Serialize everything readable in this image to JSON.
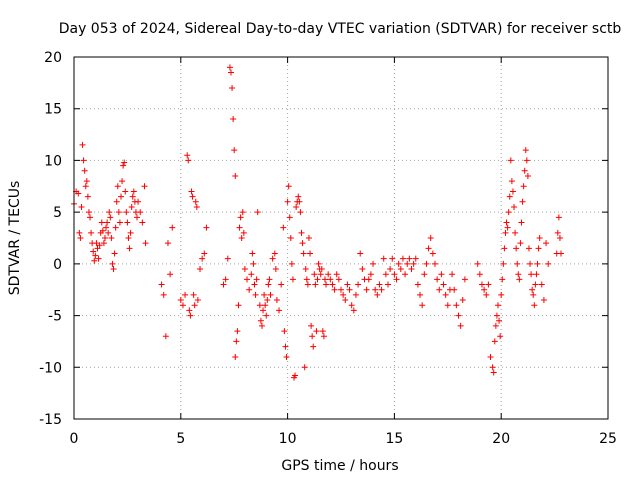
{
  "chart_data": {
    "type": "scatter",
    "title": "Day 053 of 2024, Sidereal Day-to-day VTEC variation (SDTVAR) for receiver sctb",
    "xlabel": "GPS time / hours",
    "ylabel": "SDTVAR / TECUs",
    "xlim": [
      0,
      25
    ],
    "ylim": [
      -15,
      20
    ],
    "xticks": [
      "0",
      "5",
      "10",
      "15",
      "20",
      "25"
    ],
    "yticks": [
      "-15",
      "-10",
      "-5",
      "0",
      "5",
      "10",
      "15",
      "20"
    ],
    "grid": true,
    "marker": "+",
    "color": "#ff0000",
    "series": [
      {
        "name": "SDTVAR",
        "points": [
          [
            0.0,
            5.8
          ],
          [
            0.1,
            7.0
          ],
          [
            0.2,
            6.8
          ],
          [
            0.25,
            3.0
          ],
          [
            0.3,
            2.5
          ],
          [
            0.35,
            5.5
          ],
          [
            0.4,
            11.5
          ],
          [
            0.45,
            10.0
          ],
          [
            0.5,
            9.0
          ],
          [
            0.55,
            7.5
          ],
          [
            0.6,
            8.0
          ],
          [
            0.65,
            6.5
          ],
          [
            0.7,
            5.0
          ],
          [
            0.75,
            4.5
          ],
          [
            0.8,
            3.0
          ],
          [
            0.85,
            2.0
          ],
          [
            0.9,
            1.2
          ],
          [
            0.95,
            0.3
          ],
          [
            1.0,
            0.8
          ],
          [
            1.05,
            2.0
          ],
          [
            1.1,
            1.5
          ],
          [
            1.15,
            0.5
          ],
          [
            1.2,
            1.8
          ],
          [
            1.25,
            3.0
          ],
          [
            1.3,
            4.0
          ],
          [
            1.35,
            3.2
          ],
          [
            1.4,
            2.0
          ],
          [
            1.45,
            2.5
          ],
          [
            1.5,
            3.5
          ],
          [
            1.55,
            4.0
          ],
          [
            1.6,
            3.0
          ],
          [
            1.65,
            5.0
          ],
          [
            1.7,
            4.5
          ],
          [
            1.75,
            2.5
          ],
          [
            1.8,
            0.0
          ],
          [
            1.85,
            -0.5
          ],
          [
            1.9,
            1.0
          ],
          [
            1.95,
            3.5
          ],
          [
            2.0,
            6.0
          ],
          [
            2.05,
            7.5
          ],
          [
            2.1,
            5.0
          ],
          [
            2.15,
            4.0
          ],
          [
            2.2,
            6.5
          ],
          [
            2.25,
            8.0
          ],
          [
            2.3,
            9.5
          ],
          [
            2.35,
            9.8
          ],
          [
            2.4,
            7.0
          ],
          [
            2.45,
            5.0
          ],
          [
            2.5,
            4.0
          ],
          [
            2.55,
            2.5
          ],
          [
            2.6,
            1.5
          ],
          [
            2.65,
            3.0
          ],
          [
            2.7,
            5.5
          ],
          [
            2.75,
            6.5
          ],
          [
            2.8,
            7.0
          ],
          [
            2.85,
            6.0
          ],
          [
            2.9,
            5.0
          ],
          [
            2.95,
            4.5
          ],
          [
            3.0,
            6.0
          ],
          [
            3.1,
            5.0
          ],
          [
            3.2,
            4.0
          ],
          [
            3.3,
            7.5
          ],
          [
            3.35,
            2.0
          ],
          [
            4.1,
            -2.0
          ],
          [
            4.2,
            -3.0
          ],
          [
            4.3,
            -7.0
          ],
          [
            4.4,
            2.0
          ],
          [
            4.5,
            -1.0
          ],
          [
            4.6,
            3.5
          ],
          [
            5.0,
            -3.5
          ],
          [
            5.1,
            -4.0
          ],
          [
            5.2,
            -3.0
          ],
          [
            5.3,
            10.5
          ],
          [
            5.35,
            10.0
          ],
          [
            5.4,
            -4.5
          ],
          [
            5.45,
            -5.0
          ],
          [
            5.5,
            7.0
          ],
          [
            5.55,
            6.5
          ],
          [
            5.6,
            -3.0
          ],
          [
            5.65,
            -4.0
          ],
          [
            5.7,
            6.0
          ],
          [
            5.75,
            5.5
          ],
          [
            5.8,
            -3.5
          ],
          [
            5.9,
            -0.5
          ],
          [
            6.0,
            0.5
          ],
          [
            6.1,
            1.0
          ],
          [
            6.2,
            3.5
          ],
          [
            7.0,
            -2.0
          ],
          [
            7.1,
            -1.5
          ],
          [
            7.2,
            0.5
          ],
          [
            7.3,
            19.0
          ],
          [
            7.35,
            18.5
          ],
          [
            7.4,
            17.0
          ],
          [
            7.45,
            14.0
          ],
          [
            7.5,
            11.0
          ],
          [
            7.55,
            8.5
          ],
          [
            7.55,
            -9.0
          ],
          [
            7.6,
            -7.5
          ],
          [
            7.65,
            -6.5
          ],
          [
            7.7,
            -4.0
          ],
          [
            7.75,
            3.5
          ],
          [
            7.8,
            4.5
          ],
          [
            7.85,
            2.5
          ],
          [
            7.9,
            5.0
          ],
          [
            7.95,
            3.0
          ],
          [
            8.0,
            -0.5
          ],
          [
            8.1,
            -1.5
          ],
          [
            8.2,
            -2.5
          ],
          [
            8.3,
            -1.0
          ],
          [
            8.35,
            1.0
          ],
          [
            8.4,
            0.0
          ],
          [
            8.45,
            -2.0
          ],
          [
            8.5,
            -3.0
          ],
          [
            8.55,
            -1.5
          ],
          [
            8.6,
            5.0
          ],
          [
            8.7,
            -4.0
          ],
          [
            8.75,
            -5.5
          ],
          [
            8.8,
            -6.0
          ],
          [
            8.85,
            -4.5
          ],
          [
            8.9,
            -3.0
          ],
          [
            8.95,
            -4.0
          ],
          [
            9.0,
            -5.0
          ],
          [
            9.05,
            -3.5
          ],
          [
            9.1,
            -2.0
          ],
          [
            9.15,
            -1.5
          ],
          [
            9.2,
            -3.0
          ],
          [
            9.3,
            0.5
          ],
          [
            9.4,
            1.0
          ],
          [
            9.45,
            -0.5
          ],
          [
            9.5,
            -3.5
          ],
          [
            9.6,
            -4.5
          ],
          [
            9.7,
            -2.0
          ],
          [
            9.8,
            3.5
          ],
          [
            9.85,
            -6.5
          ],
          [
            9.9,
            -8.0
          ],
          [
            9.95,
            -9.0
          ],
          [
            10.0,
            6.0
          ],
          [
            10.05,
            7.5
          ],
          [
            10.1,
            4.5
          ],
          [
            10.15,
            2.5
          ],
          [
            10.2,
            0.0
          ],
          [
            10.25,
            -1.5
          ],
          [
            10.3,
            -11.0
          ],
          [
            10.35,
            -10.8
          ],
          [
            10.4,
            5.5
          ],
          [
            10.45,
            6.0
          ],
          [
            10.5,
            6.5
          ],
          [
            10.55,
            6.0
          ],
          [
            10.6,
            5.0
          ],
          [
            10.65,
            3.0
          ],
          [
            10.7,
            2.0
          ],
          [
            10.75,
            1.0
          ],
          [
            10.8,
            -10.0
          ],
          [
            10.85,
            -0.5
          ],
          [
            10.9,
            -1.5
          ],
          [
            10.95,
            -2.0
          ],
          [
            11.0,
            2.5
          ],
          [
            11.05,
            1.0
          ],
          [
            11.1,
            -6.0
          ],
          [
            11.15,
            -7.0
          ],
          [
            11.2,
            -8.0
          ],
          [
            11.25,
            -1.0
          ],
          [
            11.3,
            -2.0
          ],
          [
            11.35,
            -6.5
          ],
          [
            11.4,
            -1.5
          ],
          [
            11.45,
            0.0
          ],
          [
            11.5,
            -0.5
          ],
          [
            11.55,
            -1.0
          ],
          [
            11.6,
            -0.5
          ],
          [
            11.65,
            -6.5
          ],
          [
            11.7,
            -7.0
          ],
          [
            11.75,
            -1.5
          ],
          [
            11.8,
            -2.0
          ],
          [
            11.9,
            -1.0
          ],
          [
            12.0,
            -1.5
          ],
          [
            12.1,
            -2.0
          ],
          [
            12.2,
            -2.5
          ],
          [
            12.3,
            -1.0
          ],
          [
            12.4,
            -1.5
          ],
          [
            12.5,
            -2.5
          ],
          [
            12.6,
            -3.0
          ],
          [
            12.7,
            -3.5
          ],
          [
            12.8,
            -2.0
          ],
          [
            12.9,
            -2.5
          ],
          [
            13.0,
            -4.0
          ],
          [
            13.1,
            -4.5
          ],
          [
            13.2,
            -3.0
          ],
          [
            13.3,
            -2.0
          ],
          [
            13.4,
            1.0
          ],
          [
            13.5,
            -0.5
          ],
          [
            13.6,
            -1.5
          ],
          [
            13.7,
            -2.5
          ],
          [
            13.8,
            -1.5
          ],
          [
            13.9,
            -1.0
          ],
          [
            14.0,
            0.0
          ],
          [
            14.1,
            -2.5
          ],
          [
            14.2,
            -3.0
          ],
          [
            14.3,
            -2.0
          ],
          [
            14.4,
            -2.5
          ],
          [
            14.5,
            0.5
          ],
          [
            14.6,
            -1.0
          ],
          [
            14.7,
            -2.0
          ],
          [
            14.8,
            -0.5
          ],
          [
            14.9,
            0.5
          ],
          [
            15.0,
            -1.0
          ],
          [
            15.1,
            -1.5
          ],
          [
            15.2,
            0.0
          ],
          [
            15.3,
            -0.5
          ],
          [
            15.4,
            0.5
          ],
          [
            15.5,
            -1.0
          ],
          [
            15.6,
            0.0
          ],
          [
            15.7,
            0.5
          ],
          [
            15.8,
            -0.5
          ],
          [
            15.9,
            0.0
          ],
          [
            16.0,
            0.5
          ],
          [
            16.1,
            -2.0
          ],
          [
            16.2,
            -3.0
          ],
          [
            16.3,
            -4.0
          ],
          [
            16.4,
            -1.0
          ],
          [
            16.5,
            0.0
          ],
          [
            16.6,
            1.5
          ],
          [
            16.7,
            2.5
          ],
          [
            16.8,
            1.0
          ],
          [
            16.9,
            0.0
          ],
          [
            17.0,
            -1.5
          ],
          [
            17.1,
            -2.5
          ],
          [
            17.2,
            -1.0
          ],
          [
            17.3,
            -2.0
          ],
          [
            17.4,
            -3.0
          ],
          [
            17.5,
            -4.0
          ],
          [
            17.6,
            -2.5
          ],
          [
            17.7,
            -1.0
          ],
          [
            17.8,
            -2.5
          ],
          [
            17.9,
            -4.0
          ],
          [
            18.0,
            -5.0
          ],
          [
            18.1,
            -6.0
          ],
          [
            18.2,
            -3.5
          ],
          [
            18.3,
            -1.5
          ],
          [
            18.9,
            0.0
          ],
          [
            19.0,
            -1.0
          ],
          [
            19.1,
            -2.0
          ],
          [
            19.2,
            -2.5
          ],
          [
            19.3,
            -3.0
          ],
          [
            19.4,
            -2.0
          ],
          [
            19.5,
            -9.0
          ],
          [
            19.6,
            -10.0
          ],
          [
            19.65,
            -10.5
          ],
          [
            19.7,
            -7.5
          ],
          [
            19.75,
            -6.0
          ],
          [
            19.8,
            -5.0
          ],
          [
            19.85,
            -4.0
          ],
          [
            19.9,
            -5.5
          ],
          [
            19.95,
            -7.0
          ],
          [
            20.0,
            -3.0
          ],
          [
            20.05,
            -1.5
          ],
          [
            20.1,
            0.0
          ],
          [
            20.15,
            1.5
          ],
          [
            20.2,
            3.0
          ],
          [
            20.25,
            4.0
          ],
          [
            20.3,
            3.5
          ],
          [
            20.35,
            5.0
          ],
          [
            20.4,
            6.5
          ],
          [
            20.45,
            10.0
          ],
          [
            20.5,
            8.0
          ],
          [
            20.55,
            7.0
          ],
          [
            20.6,
            5.5
          ],
          [
            20.65,
            3.0
          ],
          [
            20.7,
            1.5
          ],
          [
            20.75,
            0.0
          ],
          [
            20.8,
            -1.0
          ],
          [
            20.85,
            -1.5
          ],
          [
            20.9,
            2.0
          ],
          [
            20.95,
            4.0
          ],
          [
            21.0,
            6.0
          ],
          [
            21.05,
            7.5
          ],
          [
            21.1,
            9.0
          ],
          [
            21.15,
            11.0
          ],
          [
            21.2,
            10.0
          ],
          [
            21.25,
            8.5
          ],
          [
            21.3,
            1.5
          ],
          [
            21.35,
            0.0
          ],
          [
            21.4,
            -1.0
          ],
          [
            21.45,
            -2.5
          ],
          [
            21.5,
            -3.0
          ],
          [
            21.55,
            -4.0
          ],
          [
            21.6,
            -2.0
          ],
          [
            21.65,
            -1.0
          ],
          [
            21.7,
            0.0
          ],
          [
            21.75,
            1.5
          ],
          [
            21.8,
            2.5
          ],
          [
            21.9,
            -2.0
          ],
          [
            22.0,
            -3.5
          ],
          [
            22.1,
            2.0
          ],
          [
            22.2,
            0.0
          ],
          [
            22.6,
            1.0
          ],
          [
            22.65,
            3.0
          ],
          [
            22.7,
            4.5
          ],
          [
            22.75,
            2.5
          ],
          [
            22.8,
            1.0
          ]
        ]
      }
    ]
  }
}
